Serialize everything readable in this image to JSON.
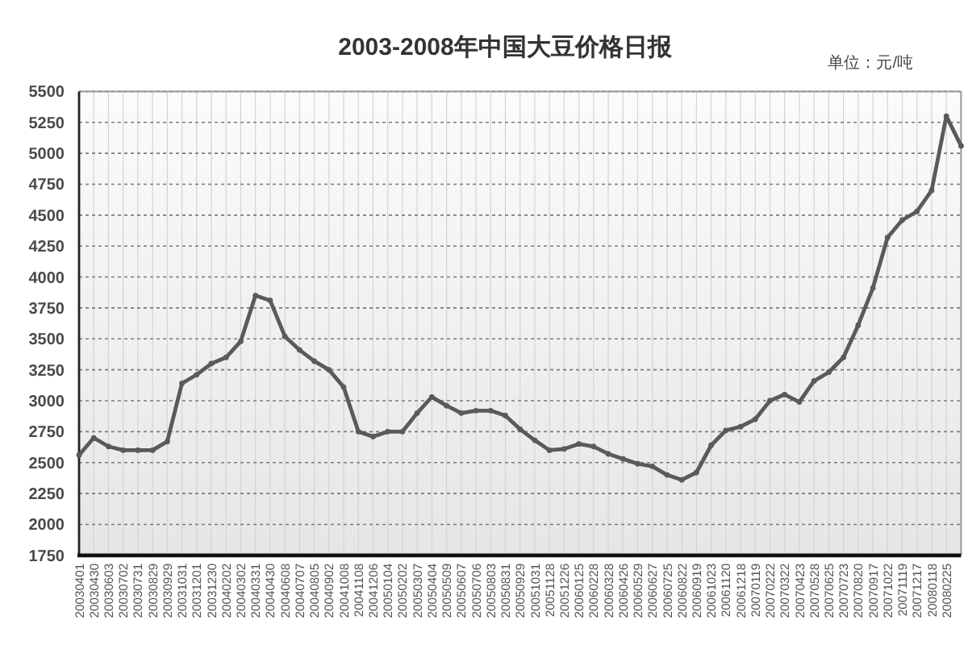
{
  "chart_data": {
    "type": "line",
    "title": "2003-2008年中国大豆价格日报",
    "annotations": [
      "单位：元/吨"
    ],
    "categories": [
      "20030401",
      "20030430",
      "20030603",
      "20030702",
      "20030731",
      "20030829",
      "20030929",
      "20031031",
      "20031201",
      "20031230",
      "20040202",
      "20040302",
      "20040331",
      "20040430",
      "20040608",
      "20040707",
      "20040805",
      "20040902",
      "20041008",
      "20041108",
      "20041206",
      "20050104",
      "20050202",
      "20050307",
      "20050404",
      "20050509",
      "20050607",
      "20050706",
      "20050803",
      "20050831",
      "20050929",
      "20051031",
      "20051128",
      "20051226",
      "20060125",
      "20060228",
      "20060328",
      "20060426",
      "20060529",
      "20060627",
      "20060725",
      "20060822",
      "20060919",
      "20061023",
      "20061120",
      "20061218",
      "20070119",
      "20070222",
      "20070322",
      "20070423",
      "20070528",
      "20070625",
      "20070723",
      "20070820",
      "20070917",
      "20071022",
      "20071119",
      "20071217",
      "20080118",
      "20080225",
      null
    ],
    "series": [
      {
        "color": "#5a5a5a",
        "values": [
          2560,
          2700,
          2630,
          2600,
          2600,
          2600,
          2670,
          3140,
          3210,
          3300,
          3350,
          3480,
          3850,
          3810,
          3520,
          3410,
          3320,
          3250,
          3110,
          2750,
          2710,
          2750,
          2750,
          2900,
          3030,
          2960,
          2900,
          2920,
          2920,
          2880,
          2770,
          2680,
          2600,
          2610,
          2650,
          2630,
          2570,
          2530,
          2490,
          2470,
          2400,
          2360,
          2420,
          2640,
          2760,
          2790,
          2850,
          3000,
          3050,
          2990,
          3160,
          3230,
          3350,
          3610,
          3910,
          4320,
          4460,
          4530,
          4700,
          5300,
          5060
        ]
      }
    ],
    "ylim": [
      1750,
      5500
    ],
    "yticks": [
      1750,
      2000,
      2250,
      2500,
      2750,
      3000,
      3250,
      3500,
      3750,
      4000,
      4250,
      4500,
      4750,
      5000,
      5250,
      5500
    ],
    "grid": true,
    "marker": "circle",
    "line_style": "solid"
  }
}
